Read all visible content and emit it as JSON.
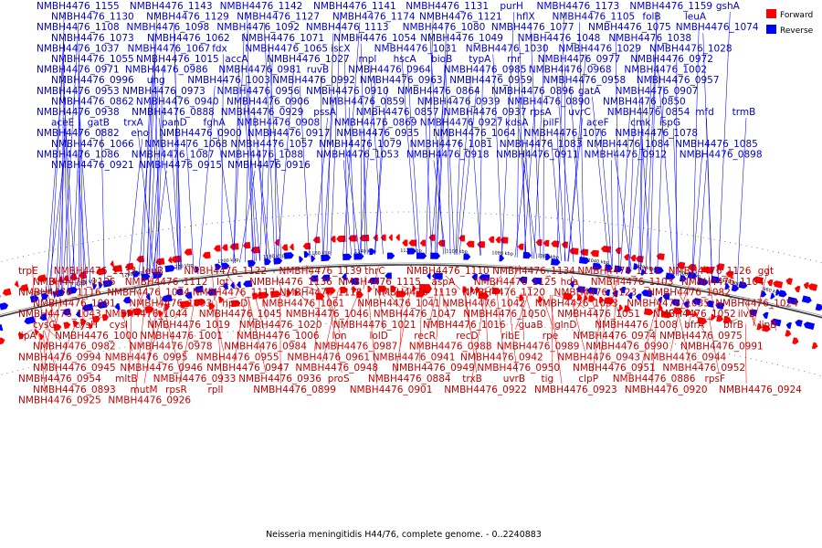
{
  "caption": "Neisseria meningitidis H44/76, complete genome. - 0..2240883",
  "legend": {
    "forward": {
      "label": "Forward",
      "color": "#ff0000"
    },
    "reverse": {
      "label": "Reverse",
      "color": "#0000ff"
    }
  },
  "ticks": [
    "1280 kbp",
    "1260 kbp",
    "1240 kbp",
    "1220 kbp",
    "1200 kbp",
    "1180 kbp",
    "1160 kbp",
    "1140 kbp",
    "1120 kbp",
    "1100 kbp",
    "1080 kbp",
    "1060 kbp",
    "1040 kbp",
    "1020 kbp",
    "1000 kbp",
    "980 kbp",
    "960 kbp"
  ],
  "reverse_labels": [
    "NMBH4476_1155",
    "NMBH4476_1143",
    "NMBH4476_1142",
    "NMBH4476_1141",
    "NMBH4476_1131",
    "purH",
    "NMBH4476_1173",
    "NMBH4476_1159",
    "gshA",
    "NMBH4476_1130",
    "NMBH4476_1129",
    "NMBH4476_1127",
    "NMBH4476_1174",
    "NMBH4476_1121",
    "hflX",
    "NMBH4476_1105",
    "folB",
    "leuA",
    "NMBH4476_1108",
    "NMBH4476_1098",
    "NMBH4476_1092",
    "NMBH4476_1113",
    "NMBH4476_1080",
    "NMBH4476_1077",
    "NMBH4476_1075",
    "NMBH4476_1074",
    "NMBH4476_1073",
    "NMBH4476_1062",
    "NMBH4476_1071",
    "NMBH4476_1054",
    "NMBH4476_1049",
    "NMBH4476_1048",
    "NMBH4476_1038",
    "NMBH4476_1037",
    "NMBH4476_1067",
    "fdx",
    "NMBH4476_1065",
    "iscX",
    "NMBH4476_1031",
    "NMBH4476_1030",
    "NMBH4476_1029",
    "NMBH4476_1028",
    "NMBH4476_1055",
    "NMBH4476_1015",
    "accA",
    "NMBH4476_1027",
    "mpl",
    "hscA",
    "bioB",
    "typA",
    "rnr",
    "NMBH4476_0977",
    "NMBH4476_0972",
    "NMBH4476_0971",
    "NMBH4476_0986",
    "NMBH4476_0981",
    "ruvB",
    "NMBH4476_0964",
    "NMBH4476_0985",
    "NMBH4476_0968",
    "NMBH4476_1002",
    "NMBH4476_0996",
    "ung",
    "NMBH4476_1003",
    "NMBH4476_0992",
    "NMBH4476_0963",
    "NMBH4476_0959",
    "NMBH4476_0958",
    "NMBH4476_0957",
    "NMBH4476_0953",
    "NMBH4476_0973",
    "NMBH4476_0956",
    "NMBH4476_0910",
    "NMBH4476_0864",
    "NMBH4476_0896",
    "gatA",
    "NMBH4476_0907",
    "NMBH4476_0862",
    "NMBH4476_0940",
    "NMBH4476_0906",
    "NMBH4476_0859",
    "NMBH4476_0939",
    "NMBH4476_0890",
    "NMBH4476_0850",
    "NMBH4476_0938",
    "NMBH4476_0888",
    "NMBH4476_0929",
    "pssA",
    "NMBH4476_0857",
    "NMBH4476_0937",
    "rpsA",
    "uvrC",
    "NMBH4476_0854",
    "mfd",
    "trmB",
    "aceE",
    "gatB",
    "trxA",
    "panD",
    "fghA",
    "NMBH4476_0908",
    "NMBH4476_0869",
    "NMBH4476_0927",
    "kdsA",
    "pilF",
    "aceF",
    "cmk",
    "ispG",
    "NMBH4476_0882",
    "eno",
    "NMBH4476_0900",
    "NMBH4476_0917",
    "NMBH4476_0935",
    "NMBH4476_1064",
    "NMBH4476_1076",
    "NMBH4476_1078",
    "NMBH4476_1066",
    "NMBH4476_1068",
    "NMBH4476_1057",
    "NMBH4476_1079",
    "NMBH4476_1081",
    "NMBH4476_1083",
    "NMBH4476_1084",
    "NMBH4476_1085",
    "NMBH4476_1086",
    "NMBH4476_1087",
    "NMBH4476_1088",
    "NMBH4476_1053",
    "NMBH4476_0918",
    "NMBH4476_0911",
    "NMBH4476_0912",
    "NMBH4476_0898",
    "NMBH4476_0921",
    "NMBH4476_0915",
    "NMBH4476_0916"
  ],
  "forward_labels": [
    "trpE",
    "NMBH4476_1133",
    "leuB",
    "NMBH4476_1122",
    "NMBH4476_1139",
    "thrC",
    "NMBH4476_1110",
    "NMBH4476_1134",
    "NMBH4476_1111",
    "NMBH4476_1126",
    "ggt",
    "NMBH4476_1135",
    "NMBH4476_1112",
    "lgt",
    "NMBH4476_1136",
    "NMBH4476_1115",
    "aspA",
    "NMBH4476_1125",
    "hda",
    "NMBH4476_1103",
    "NMBH4476_1104",
    "NMBH4476_1116",
    "NMBH4476_1094",
    "NMBH4476_1117",
    "NMBH4476_1118",
    "NMBH4476_1119",
    "NMBH4476_1120",
    "NMBH4476_1123",
    "NMBH4476_1082",
    "NMBH4476_1091",
    "NMBH4476_1093",
    "hpnD",
    "NMBH4476_1061",
    "NMBH4476_1041",
    "NMBH4476_1042",
    "NMBH4476_1033",
    "NMBH4476_1035",
    "NMBH4476_1024",
    "NMBH4476_1043",
    "NMBH4476_1044",
    "NMBH4476_1045",
    "NMBH4476_1046",
    "NMBH4476_1047",
    "NMBH4476_1050",
    "NMBH4476_1051",
    "NMBH4476_1052",
    "ilvD",
    "cysG",
    "cysH",
    "cysI",
    "NMBH4476_1019",
    "NMBH4476_1020",
    "NMBH4476_1021",
    "NMBH4476_1016",
    "guaB",
    "glnD",
    "NMBH4476_1008",
    "bfrA",
    "bfrB",
    "lipB",
    "lipA",
    "NMBH4476_1000",
    "NMBH4476_1001",
    "NMBH4476_1006",
    "lon",
    "lolD",
    "recR",
    "recD",
    "ribE",
    "rpe",
    "NMBH4476_0974",
    "NMBH4476_0975",
    "NMBH4476_0982",
    "NMBH4476_0978",
    "NMBH4476_0984",
    "NMBH4476_0987",
    "NMBH4476_0988",
    "NMBH4476_0989",
    "NMBH4476_0990",
    "NMBH4476_0991",
    "NMBH4476_0994",
    "NMBH4476_0995",
    "NMBH4476_0955",
    "NMBH4476_0961",
    "NMBH4476_0941",
    "NMBH4476_0942",
    "NMBH4476_0943",
    "NMBH4476_0944",
    "NMBH4476_0945",
    "NMBH4476_0946",
    "NMBH4476_0947",
    "NMBH4476_0948",
    "NMBH4476_0949",
    "NMBH4476_0950",
    "NMBH4476_0951",
    "NMBH4476_0952",
    "NMBH4476_0954",
    "mltB",
    "NMBH4476_0933",
    "NMBH4476_0936",
    "proS",
    "NMBH4476_0884",
    "trxB",
    "uvrB",
    "tig",
    "clpP",
    "NMBH4476_0886",
    "rpsF",
    "NMBH4476_0893",
    "mutM",
    "rpsR",
    "rplI",
    "NMBH4476_0899",
    "NMBH4476_0901",
    "NMBH4476_0922",
    "NMBH4476_0923",
    "NMBH4476_0920",
    "NMBH4476_0924",
    "NMBH4476_0925",
    "NMBH4476_0926"
  ]
}
